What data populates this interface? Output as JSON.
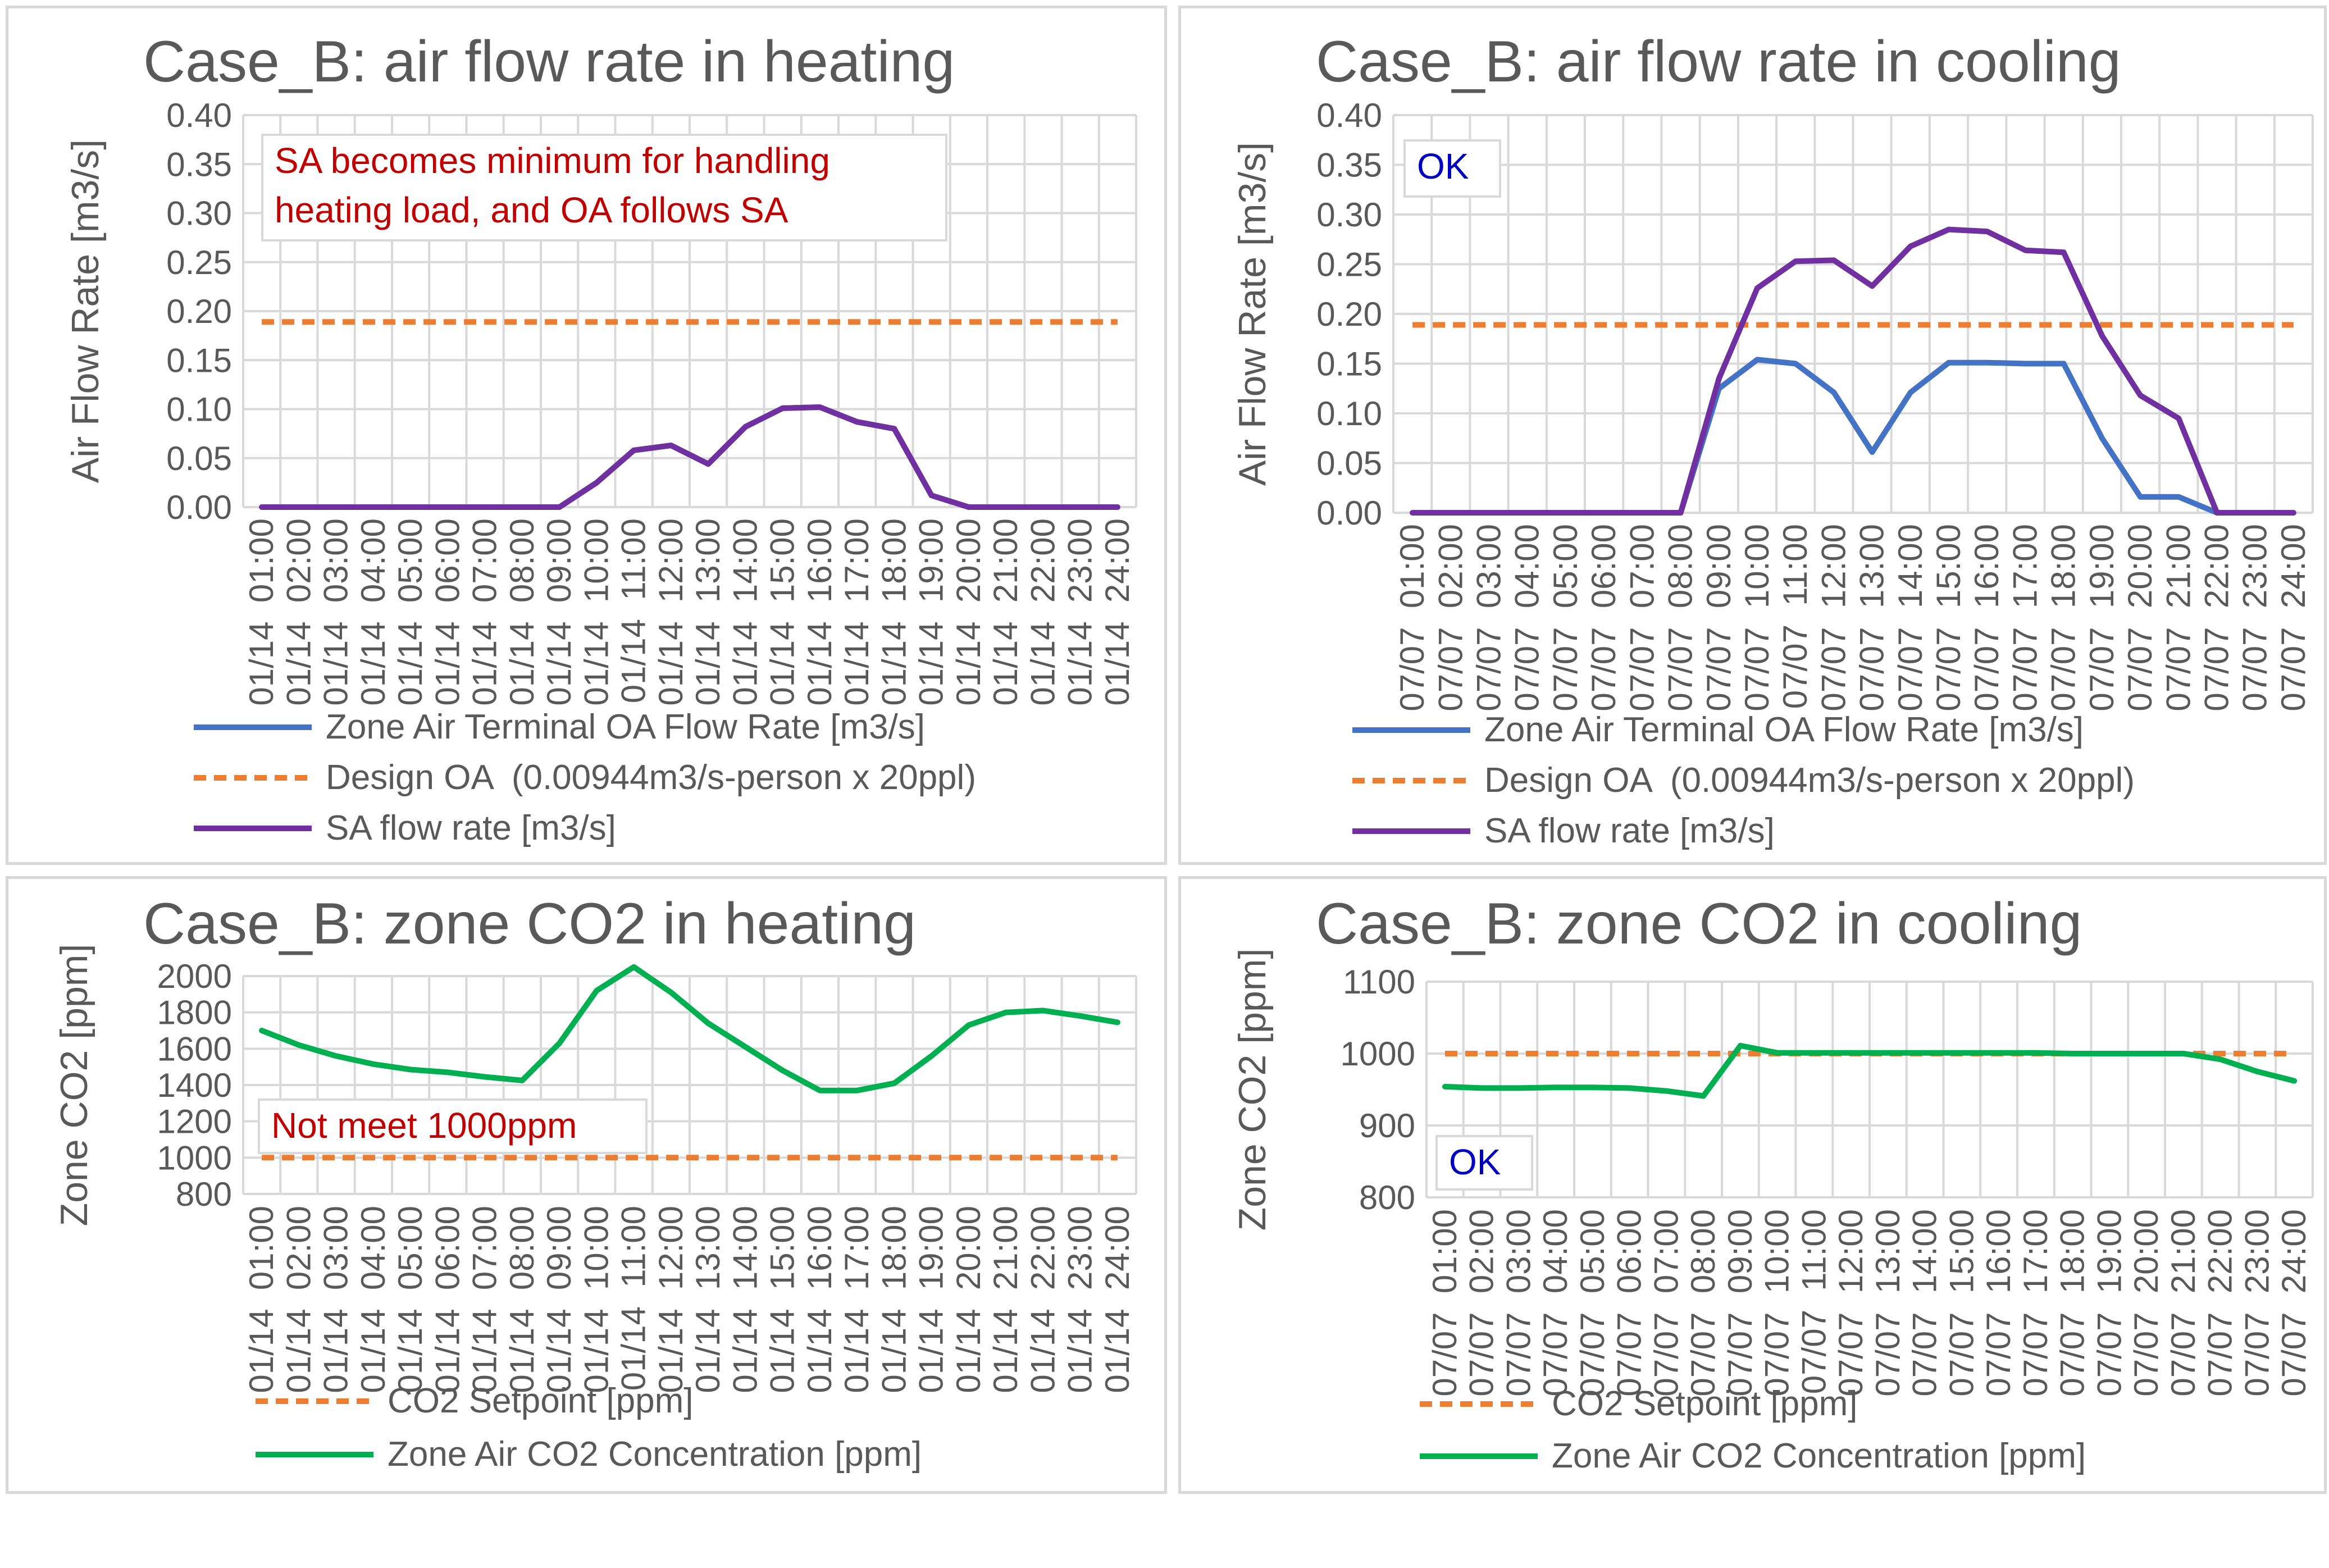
{
  "colors": {
    "oa": "#4472c4",
    "design": "#ed7d31",
    "sa": "#7030a0",
    "co2": "#00b050",
    "note_red": "#c00000",
    "note_blue": "#0000c0",
    "grid": "#d9d9d9",
    "text": "#595959"
  },
  "chart_data": [
    {
      "type": "line",
      "title": "Case_B: air flow rate in heating",
      "ylabel": "Air Flow Rate [m3/s]",
      "ylim": [
        0,
        0.4
      ],
      "yticks": [
        "0.00",
        "0.05",
        "0.10",
        "0.15",
        "0.20",
        "0.25",
        "0.30",
        "0.35",
        "0.40"
      ],
      "categories": [
        "01/14  01:00",
        "01/14  02:00",
        "01/14  03:00",
        "01/14  04:00",
        "01/14  05:00",
        "01/14  06:00",
        "01/14  07:00",
        "01/14  08:00",
        "01/14  09:00",
        "01/14  10:00",
        "01/14  11:00",
        "01/14  12:00",
        "01/14  13:00",
        "01/14  14:00",
        "01/14  15:00",
        "01/14  16:00",
        "01/14  17:00",
        "01/14  18:00",
        "01/14  19:00",
        "01/14  20:00",
        "01/14  21:00",
        "01/14  22:00",
        "01/14  23:00",
        "01/14  24:00"
      ],
      "grid": true,
      "legend_position": "bottom",
      "annotation": "SA becomes minimum for handling heating load, and OA follows SA",
      "annotation_lines": [
        "SA becomes minimum for handling",
        "heating load, and OA follows SA"
      ],
      "annotation_color": "#c00000",
      "series": [
        {
          "name": "Zone Air Terminal OA Flow Rate [m3/s]",
          "style": "solid",
          "color": "#4472c4",
          "values": [
            0,
            0,
            0,
            0,
            0,
            0,
            0,
            0,
            0,
            0.025,
            0.058,
            0.063,
            0.044,
            0.082,
            0.101,
            0.102,
            0.087,
            0.08,
            0.012,
            0,
            0,
            0,
            0,
            0
          ]
        },
        {
          "name": "Design OA  (0.00944m3/s-person x 20ppl)",
          "style": "dashed",
          "color": "#ed7d31",
          "values": [
            0.189,
            0.189,
            0.189,
            0.189,
            0.189,
            0.189,
            0.189,
            0.189,
            0.189,
            0.189,
            0.189,
            0.189,
            0.189,
            0.189,
            0.189,
            0.189,
            0.189,
            0.189,
            0.189,
            0.189,
            0.189,
            0.189,
            0.189,
            0.189
          ]
        },
        {
          "name": "SA flow rate [m3/s]",
          "style": "solid",
          "color": "#7030a0",
          "values": [
            0,
            0,
            0,
            0,
            0,
            0,
            0,
            0,
            0,
            0.025,
            0.058,
            0.063,
            0.044,
            0.082,
            0.101,
            0.102,
            0.087,
            0.08,
            0.012,
            0,
            0,
            0,
            0,
            0
          ]
        }
      ]
    },
    {
      "type": "line",
      "title": "Case_B: air flow rate in cooling",
      "ylabel": "Air Flow Rate [m3/s]",
      "ylim": [
        0,
        0.4
      ],
      "yticks": [
        "0.00",
        "0.05",
        "0.10",
        "0.15",
        "0.20",
        "0.25",
        "0.30",
        "0.35",
        "0.40"
      ],
      "categories": [
        "07/07  01:00",
        "07/07  02:00",
        "07/07  03:00",
        "07/07  04:00",
        "07/07  05:00",
        "07/07  06:00",
        "07/07  07:00",
        "07/07  08:00",
        "07/07  09:00",
        "07/07  10:00",
        "07/07  11:00",
        "07/07  12:00",
        "07/07  13:00",
        "07/07  14:00",
        "07/07  15:00",
        "07/07  16:00",
        "07/07  17:00",
        "07/07  18:00",
        "07/07  19:00",
        "07/07  20:00",
        "07/07  21:00",
        "07/07  22:00",
        "07/07  23:00",
        "07/07  24:00"
      ],
      "grid": true,
      "legend_position": "bottom",
      "annotation": "OK",
      "annotation_lines": [
        "OK"
      ],
      "annotation_color": "#0000c0",
      "series": [
        {
          "name": "Zone Air Terminal OA Flow Rate [m3/s]",
          "style": "solid",
          "color": "#4472c4",
          "values": [
            0,
            0,
            0,
            0,
            0,
            0,
            0,
            0,
            0.125,
            0.154,
            0.15,
            0.121,
            0.061,
            0.121,
            0.151,
            0.151,
            0.15,
            0.15,
            0.075,
            0.016,
            0.016,
            0,
            0,
            0
          ]
        },
        {
          "name": "Design OA  (0.00944m3/s-person x 20ppl)",
          "style": "dashed",
          "color": "#ed7d31",
          "values": [
            0.189,
            0.189,
            0.189,
            0.189,
            0.189,
            0.189,
            0.189,
            0.189,
            0.189,
            0.189,
            0.189,
            0.189,
            0.189,
            0.189,
            0.189,
            0.189,
            0.189,
            0.189,
            0.189,
            0.189,
            0.189,
            0.189,
            0.189,
            0.189
          ]
        },
        {
          "name": "SA flow rate [m3/s]",
          "style": "solid",
          "color": "#7030a0",
          "values": [
            0,
            0,
            0,
            0,
            0,
            0,
            0,
            0,
            0.135,
            0.226,
            0.253,
            0.254,
            0.228,
            0.268,
            0.285,
            0.283,
            0.264,
            0.262,
            0.178,
            0.118,
            0.095,
            0,
            0,
            0
          ]
        }
      ]
    },
    {
      "type": "line",
      "title": "Case_B: zone CO2 in heating",
      "ylabel": "Zone CO2 [ppm]",
      "ylim": [
        800,
        2000
      ],
      "yticks": [
        "800",
        "1000",
        "1200",
        "1400",
        "1600",
        "1800",
        "2000"
      ],
      "categories": [
        "01/14  01:00",
        "01/14  02:00",
        "01/14  03:00",
        "01/14  04:00",
        "01/14  05:00",
        "01/14  06:00",
        "01/14  07:00",
        "01/14  08:00",
        "01/14  09:00",
        "01/14  10:00",
        "01/14  11:00",
        "01/14  12:00",
        "01/14  13:00",
        "01/14  14:00",
        "01/14  15:00",
        "01/14  16:00",
        "01/14  17:00",
        "01/14  18:00",
        "01/14  19:00",
        "01/14  20:00",
        "01/14  21:00",
        "01/14  22:00",
        "01/14  23:00",
        "01/14  24:00"
      ],
      "grid": true,
      "legend_position": "bottom",
      "annotation": "Not meet 1000ppm",
      "annotation_lines": [
        "Not meet 1000ppm"
      ],
      "annotation_color": "#c00000",
      "series": [
        {
          "name": "CO2 Setpoint [ppm]",
          "style": "dashed",
          "color": "#ed7d31",
          "values": [
            1000,
            1000,
            1000,
            1000,
            1000,
            1000,
            1000,
            1000,
            1000,
            1000,
            1000,
            1000,
            1000,
            1000,
            1000,
            1000,
            1000,
            1000,
            1000,
            1000,
            1000,
            1000,
            1000,
            1000
          ]
        },
        {
          "name": "Zone Air CO2 Concentration [ppm]",
          "style": "solid",
          "color": "#00b050",
          "values": [
            1700,
            1620,
            1560,
            1515,
            1485,
            1470,
            1445,
            1425,
            1630,
            1920,
            2050,
            1910,
            1740,
            1610,
            1480,
            1370,
            1370,
            1410,
            1560,
            1730,
            1800,
            1810,
            1780,
            1745
          ]
        }
      ]
    },
    {
      "type": "line",
      "title": "Case_B: zone CO2 in cooling",
      "ylabel": "Zone CO2 [ppm]",
      "ylim": [
        800,
        1100
      ],
      "yticks": [
        "800",
        "900",
        "1000",
        "1100"
      ],
      "categories": [
        "07/07  01:00",
        "07/07  02:00",
        "07/07  03:00",
        "07/07  04:00",
        "07/07  05:00",
        "07/07  06:00",
        "07/07  07:00",
        "07/07  08:00",
        "07/07  09:00",
        "07/07  10:00",
        "07/07  11:00",
        "07/07  12:00",
        "07/07  13:00",
        "07/07  14:00",
        "07/07  15:00",
        "07/07  16:00",
        "07/07  17:00",
        "07/07  18:00",
        "07/07  19:00",
        "07/07  20:00",
        "07/07  21:00",
        "07/07  22:00",
        "07/07  23:00",
        "07/07  24:00"
      ],
      "grid": true,
      "legend_position": "bottom",
      "annotation": "OK",
      "annotation_lines": [
        "OK"
      ],
      "annotation_color": "#0000c0",
      "series": [
        {
          "name": "CO2 Setpoint [ppm]",
          "style": "dashed",
          "color": "#ed7d31",
          "values": [
            1000,
            1000,
            1000,
            1000,
            1000,
            1000,
            1000,
            1000,
            1000,
            1000,
            1000,
            1000,
            1000,
            1000,
            1000,
            1000,
            1000,
            1000,
            1000,
            1000,
            1000,
            1000,
            1000,
            1000
          ]
        },
        {
          "name": "Zone Air CO2 Concentration [ppm]",
          "style": "solid",
          "color": "#00b050",
          "values": [
            954,
            952,
            952,
            953,
            953,
            952,
            948,
            941,
            1011,
            1001,
            1001,
            1001,
            1001,
            1001,
            1001,
            1001,
            1001,
            1000,
            1000,
            1000,
            1000,
            992,
            975,
            962
          ]
        }
      ]
    }
  ]
}
